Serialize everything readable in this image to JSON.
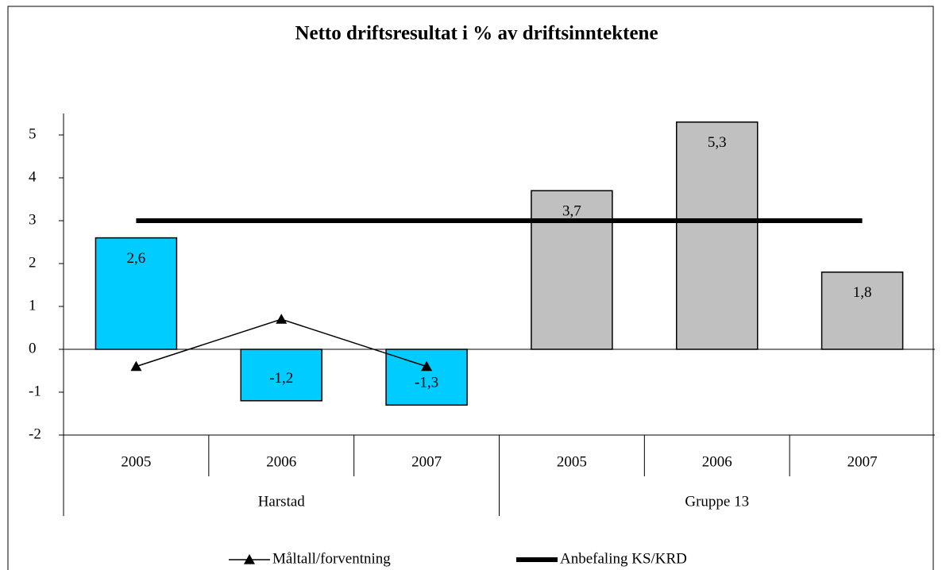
{
  "chart_data": {
    "type": "bar",
    "title": "Netto driftsresultat i % av driftsinntektene",
    "categories": [
      "2005",
      "2006",
      "2007",
      "2005",
      "2006",
      "2007"
    ],
    "groups": [
      "Harstad",
      "Gruppe 13"
    ],
    "values": [
      2.6,
      -1.2,
      -1.3,
      3.7,
      5.3,
      1.8
    ],
    "value_labels": [
      "2,6",
      "-1,2",
      "-1,3",
      "3,7",
      "5,3",
      "1,8"
    ],
    "colors": [
      "#00ccff",
      "#00ccff",
      "#00ccff",
      "#c0c0c0",
      "#c0c0c0",
      "#c0c0c0"
    ],
    "series": [
      {
        "name": "Måltall/forventning",
        "color": "#000000",
        "marker": "triangle",
        "values": [
          -0.4,
          0.7,
          -0.4,
          null,
          null,
          null
        ]
      },
      {
        "name": "Anbefaling KS/KRD",
        "color": "#000000",
        "values": [
          3,
          3,
          3,
          3,
          3,
          3
        ]
      }
    ],
    "ylim": [
      -2,
      5.5
    ],
    "yticks": [
      -2,
      -1,
      0,
      1,
      2,
      3,
      4,
      5
    ],
    "legend": "bottom"
  }
}
